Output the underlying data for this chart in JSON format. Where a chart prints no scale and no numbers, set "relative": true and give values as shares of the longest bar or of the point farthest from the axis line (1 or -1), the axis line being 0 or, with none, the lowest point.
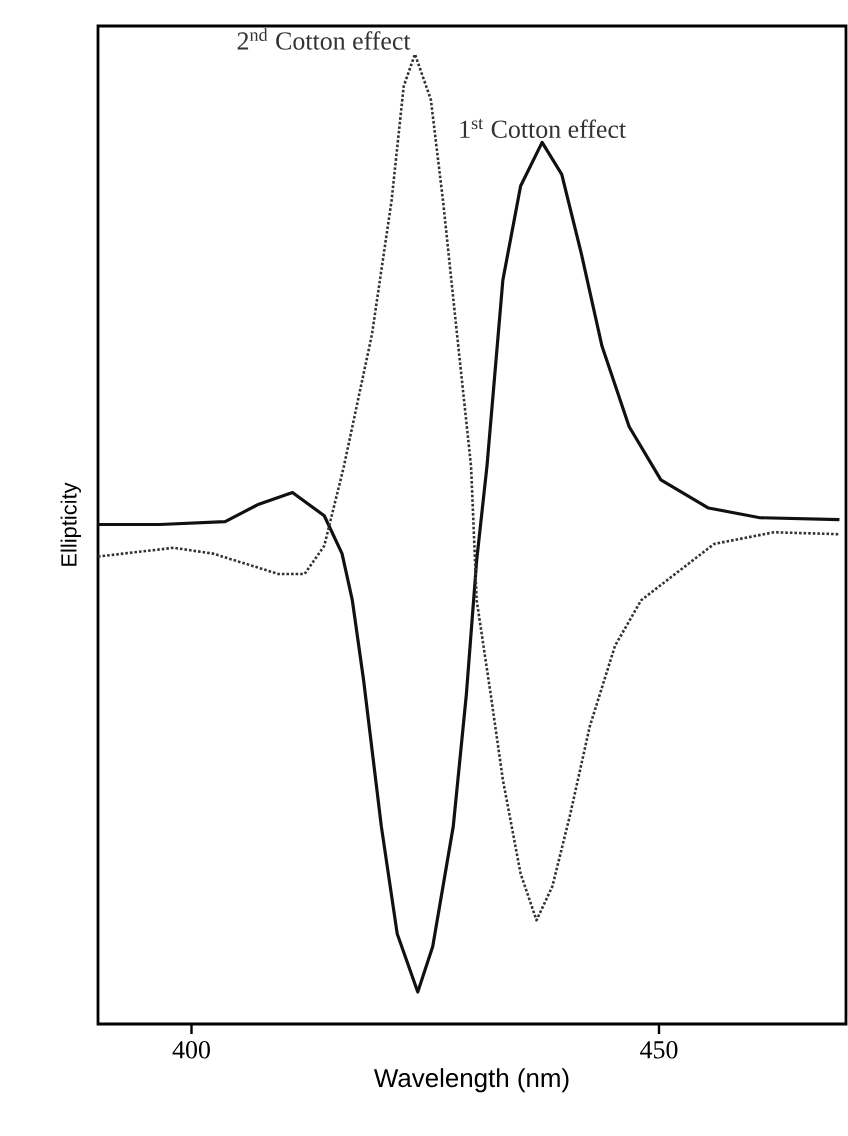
{
  "chart_data": {
    "type": "line",
    "relative": true,
    "xlabel": "Wavelength (nm)",
    "ylabel": "Ellipticity",
    "xlim": [
      390,
      470
    ],
    "xticks": [
      400,
      450
    ],
    "grid": false,
    "marker": "none",
    "annotations": [
      {
        "text": "2$^{nd}$ Cotton effect",
        "x": 423.9,
        "y": 1.0
      },
      {
        "text": "1$^{st}$ Cotton effect",
        "x": 437.5,
        "y": 0.909
      }
    ],
    "series": [
      {
        "color": "#111111",
        "line_style": "solid",
        "x": [
          390.0,
          396.6,
          403.6,
          407.2,
          410.8,
          414.2,
          416.1,
          417.2,
          418.4,
          420.3,
          422.0,
          424.2,
          425.8,
          428.0,
          429.4,
          430.5,
          431.6,
          433.3,
          435.2,
          437.5,
          439.6,
          441.7,
          443.9,
          446.8,
          450.2,
          455.3,
          460.8,
          469.3
        ],
        "values": [
          0.515,
          0.515,
          0.518,
          0.536,
          0.548,
          0.524,
          0.485,
          0.437,
          0.355,
          0.204,
          0.093,
          0.033,
          0.08,
          0.204,
          0.34,
          0.478,
          0.575,
          0.767,
          0.864,
          0.909,
          0.876,
          0.794,
          0.699,
          0.616,
          0.561,
          0.532,
          0.522,
          0.52
        ]
      },
      {
        "color": "#333333",
        "line_style": "dotted",
        "x": [
          390.0,
          398.1,
          402.3,
          409.3,
          412.1,
          414.2,
          416.3,
          419.3,
          421.4,
          422.7,
          423.9,
          425.6,
          426.9,
          428.4,
          429.9,
          430.5,
          432.0,
          433.3,
          435.2,
          436.9,
          438.6,
          440.5,
          442.6,
          445.3,
          448.1,
          455.9,
          462.3,
          469.3
        ],
        "values": [
          0.482,
          0.491,
          0.485,
          0.464,
          0.464,
          0.493,
          0.575,
          0.711,
          0.849,
          0.967,
          1.0,
          0.953,
          0.849,
          0.711,
          0.575,
          0.437,
          0.34,
          0.252,
          0.155,
          0.107,
          0.142,
          0.216,
          0.307,
          0.39,
          0.437,
          0.495,
          0.507,
          0.505
        ]
      }
    ]
  }
}
